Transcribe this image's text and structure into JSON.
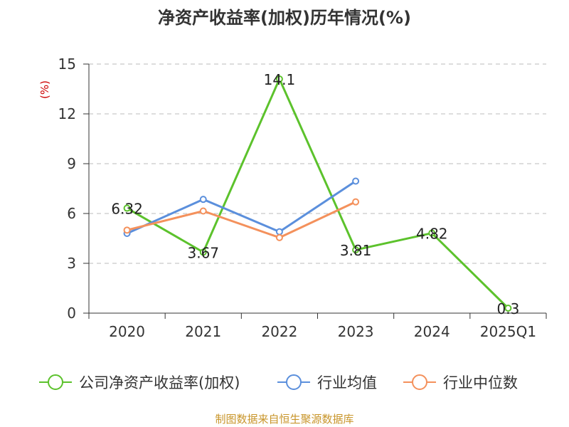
{
  "colors": {
    "company": "#5cc22c",
    "industry_avg": "#5b8fdc",
    "industry_median": "#f4915c",
    "source": "#c8952a",
    "unit": "#cc0000"
  },
  "chart_data": {
    "type": "line",
    "title": "净资产收益率(加权)历年情况(%)",
    "ylabel": "(%)",
    "ylim": [
      0,
      15
    ],
    "yticks": [
      "0",
      "3",
      "6",
      "9",
      "12",
      "15"
    ],
    "grid": true,
    "legend_position": "bottom",
    "categories": [
      "2020",
      "2021",
      "2022",
      "2023",
      "2024",
      "2025Q1"
    ],
    "series": [
      {
        "name": "公司净资产收益率(加权)",
        "values": [
          6.32,
          3.67,
          14.1,
          3.81,
          4.82,
          0.3
        ],
        "labels": [
          "6.32",
          "3.67",
          "14.1",
          "3.81",
          "4.82",
          "0.3"
        ]
      },
      {
        "name": "行业均值",
        "values": [
          4.8,
          6.85,
          4.9,
          7.95,
          null,
          null
        ]
      },
      {
        "name": "行业中位数",
        "values": [
          5.0,
          6.15,
          4.55,
          6.7,
          null,
          null
        ]
      }
    ],
    "source": "制图数据来自恒生聚源数据库"
  }
}
